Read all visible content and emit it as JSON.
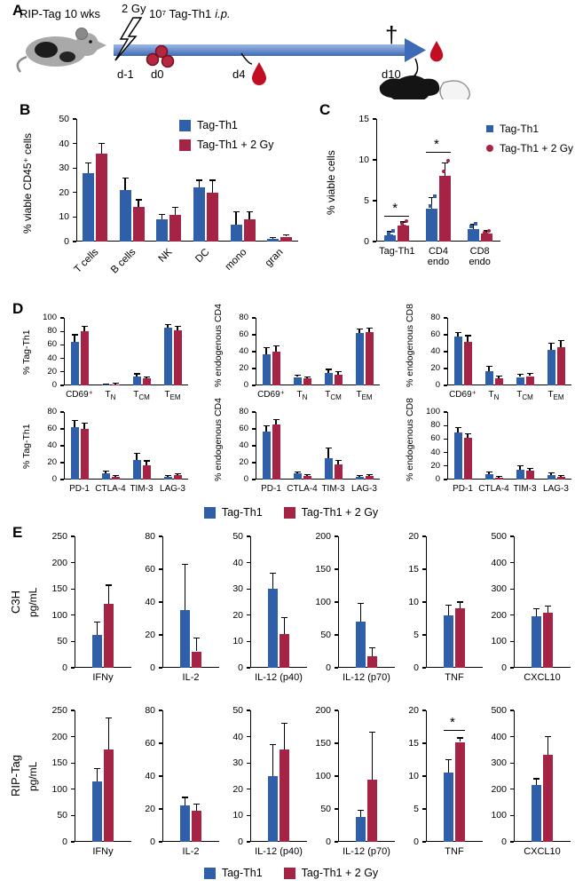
{
  "colors": {
    "blue": "#2e5fa8",
    "red": "#a52345",
    "arrow": "#3f6ab5"
  },
  "legend": {
    "series1": "Tag-Th1",
    "series2": "Tag-Th1 + 2 Gy"
  },
  "panels": {
    "A": {
      "label": "A",
      "mouse_label": "RIP-Tag 10 wks",
      "irradiation": "2 Gy",
      "cells_dose": "10⁷ Tag-Th1",
      "cells_route": "i.p.",
      "timepoints": [
        "d-1",
        "d0",
        "d4",
        "d10"
      ],
      "endpoint_symbol": "†"
    },
    "B": {
      "label": "B"
    },
    "C": {
      "label": "C"
    },
    "D": {
      "label": "D"
    },
    "E": {
      "label": "E",
      "rows": [
        {
          "label": "C3H",
          "ylabel": "pg/mL"
        },
        {
          "label": "RIP-Tag",
          "ylabel": "pg/mL"
        }
      ]
    }
  },
  "chart_data": [
    {
      "id": "B",
      "type": "bar",
      "ylabel": "% viable CD45⁺ cells",
      "ylim": [
        0,
        50
      ],
      "yticks": [
        0,
        10,
        20,
        30,
        40,
        50
      ],
      "categories": [
        "T cells",
        "B cells",
        "NK",
        "DC",
        "mono",
        "gran"
      ],
      "series": [
        {
          "name": "Tag-Th1",
          "color": "blue",
          "values": [
            28,
            21,
            9,
            22,
            7,
            1
          ],
          "errors": [
            4,
            5,
            2,
            3,
            5,
            0.5
          ]
        },
        {
          "name": "Tag-Th1 + 2 Gy",
          "color": "red",
          "values": [
            36,
            14,
            11,
            20,
            9,
            2
          ],
          "errors": [
            4,
            3,
            3,
            5,
            3,
            0.7
          ]
        }
      ]
    },
    {
      "id": "C",
      "type": "bar",
      "ylabel": "% viable cells",
      "ylim": [
        0,
        15
      ],
      "yticks": [
        0,
        5,
        10,
        15
      ],
      "categories": [
        "Tag-Th1",
        "CD4\nendo",
        "CD8\nendo"
      ],
      "series": [
        {
          "name": "Tag-Th1",
          "color": "blue",
          "marker": "square",
          "values": [
            0.8,
            4,
            1.5
          ],
          "errors": [
            0.4,
            1.4,
            0.6
          ],
          "points": [
            [
              0.4,
              0.7,
              1.0,
              1.3
            ],
            [
              2.8,
              3.6,
              4.3,
              5.6
            ],
            [
              0.9,
              1.3,
              1.8,
              2.2
            ]
          ]
        },
        {
          "name": "Tag-Th1 + 2 Gy",
          "color": "red",
          "marker": "circle",
          "values": [
            2,
            8,
            1
          ],
          "errors": [
            0.4,
            1.6,
            0.3
          ],
          "points": [
            [
              1.6,
              1.9,
              2.2,
              2.5
            ],
            [
              6.3,
              7.6,
              8.6,
              9.9
            ],
            [
              0.7,
              0.9,
              1.1,
              1.3
            ]
          ]
        }
      ],
      "sig": [
        {
          "cat": 0,
          "y": 3.2,
          "label": "*"
        },
        {
          "cat": 1,
          "y": 11,
          "label": "*"
        }
      ]
    },
    {
      "id": "D-TagTh1-memory",
      "type": "bar",
      "ylabel": "% Tag-Th1",
      "ylim": [
        0,
        100
      ],
      "yticks": [
        0,
        20,
        40,
        60,
        80,
        100
      ],
      "categories": [
        "CD69⁺",
        "T_N",
        "T_CM",
        "T_EM"
      ],
      "series": [
        {
          "color": "blue",
          "values": [
            65,
            1,
            13,
            85
          ],
          "errors": [
            10,
            0.8,
            4,
            5
          ]
        },
        {
          "color": "red",
          "values": [
            80,
            2,
            10,
            82
          ],
          "errors": [
            8,
            1,
            3,
            6
          ]
        }
      ]
    },
    {
      "id": "D-CD4-memory",
      "type": "bar",
      "ylabel": "% endogenous CD4",
      "ylim": [
        0,
        80
      ],
      "yticks": [
        0,
        20,
        40,
        60,
        80
      ],
      "categories": [
        "CD69⁺",
        "T_N",
        "T_CM",
        "T_EM"
      ],
      "series": [
        {
          "color": "blue",
          "values": [
            37,
            10,
            15,
            62
          ],
          "errors": [
            8,
            2,
            4,
            5
          ]
        },
        {
          "color": "red",
          "values": [
            40,
            8,
            13,
            63
          ],
          "errors": [
            7,
            2,
            3,
            5
          ]
        }
      ]
    },
    {
      "id": "D-CD8-memory",
      "type": "bar",
      "ylabel": "% endogenous CD8",
      "ylim": [
        0,
        80
      ],
      "yticks": [
        0,
        20,
        40,
        60,
        80
      ],
      "categories": [
        "CD69⁺",
        "T_N",
        "T_CM",
        "T_EM"
      ],
      "series": [
        {
          "color": "blue",
          "values": [
            58,
            17,
            10,
            42
          ],
          "errors": [
            5,
            6,
            3,
            8
          ]
        },
        {
          "color": "red",
          "values": [
            52,
            8,
            11,
            45
          ],
          "errors": [
            7,
            3,
            3,
            8
          ]
        }
      ]
    },
    {
      "id": "D-TagTh1-inhibitory",
      "type": "bar",
      "ylabel": "% Tag-Th1",
      "ylim": [
        0,
        80
      ],
      "yticks": [
        0,
        20,
        40,
        60,
        80
      ],
      "categories": [
        "PD-1",
        "CTLA-4",
        "TIM-3",
        "LAG-3"
      ],
      "series": [
        {
          "color": "blue",
          "values": [
            62,
            7,
            23,
            3
          ],
          "errors": [
            8,
            3,
            8,
            1.5
          ]
        },
        {
          "color": "red",
          "values": [
            60,
            3,
            17,
            5
          ],
          "errors": [
            7,
            1.5,
            5,
            2
          ]
        }
      ]
    },
    {
      "id": "D-CD4-inhibitory",
      "type": "bar",
      "ylabel": "% endogenous CD4",
      "ylim": [
        0,
        80
      ],
      "yticks": [
        0,
        20,
        40,
        60,
        80
      ],
      "categories": [
        "PD-1",
        "CTLA-4",
        "TIM-3",
        "LAG-3"
      ],
      "series": [
        {
          "color": "blue",
          "values": [
            57,
            7,
            25,
            3
          ],
          "errors": [
            7,
            2,
            12,
            2
          ]
        },
        {
          "color": "red",
          "values": [
            65,
            4,
            18,
            4
          ],
          "errors": [
            6,
            2,
            5,
            2
          ]
        }
      ]
    },
    {
      "id": "D-CD8-inhibitory",
      "type": "bar",
      "ylabel": "% endogenous CD8",
      "ylim": [
        0,
        100
      ],
      "yticks": [
        0,
        20,
        40,
        60,
        80,
        100
      ],
      "categories": [
        "PD-1",
        "CTLA-4",
        "TIM-3",
        "LAG-3"
      ],
      "series": [
        {
          "color": "blue",
          "values": [
            70,
            8,
            15,
            7
          ],
          "errors": [
            7,
            3,
            5,
            3
          ]
        },
        {
          "color": "red",
          "values": [
            62,
            3,
            13,
            4
          ],
          "errors": [
            6,
            1.5,
            3,
            2
          ]
        }
      ]
    },
    {
      "id": "E-C3H-IFNy",
      "type": "bar",
      "ylim": [
        0,
        250
      ],
      "yticks": [
        0,
        50,
        100,
        150,
        200,
        250
      ],
      "categories": [
        "IFNy"
      ],
      "series": [
        {
          "color": "blue",
          "values": [
            62
          ],
          "errors": [
            25
          ]
        },
        {
          "color": "red",
          "values": [
            122
          ],
          "errors": [
            35
          ]
        }
      ]
    },
    {
      "id": "E-C3H-IL2",
      "type": "bar",
      "ylim": [
        0,
        80
      ],
      "yticks": [
        0,
        20,
        40,
        60,
        80
      ],
      "categories": [
        "IL-2"
      ],
      "series": [
        {
          "color": "blue",
          "values": [
            35
          ],
          "errors": [
            28
          ]
        },
        {
          "color": "red",
          "values": [
            10
          ],
          "errors": [
            8
          ]
        }
      ]
    },
    {
      "id": "E-C3H-IL12p40",
      "type": "bar",
      "ylim": [
        0,
        50
      ],
      "yticks": [
        0,
        10,
        20,
        30,
        40,
        50
      ],
      "categories": [
        "IL-12 (p40)"
      ],
      "series": [
        {
          "color": "blue",
          "values": [
            30
          ],
          "errors": [
            6
          ]
        },
        {
          "color": "red",
          "values": [
            13
          ],
          "errors": [
            6
          ]
        }
      ]
    },
    {
      "id": "E-C3H-IL12p70",
      "type": "bar",
      "ylim": [
        0,
        200
      ],
      "yticks": [
        0,
        50,
        100,
        150,
        200
      ],
      "categories": [
        "IL-12 (p70)"
      ],
      "series": [
        {
          "color": "blue",
          "values": [
            70
          ],
          "errors": [
            28
          ]
        },
        {
          "color": "red",
          "values": [
            18
          ],
          "errors": [
            12
          ]
        }
      ]
    },
    {
      "id": "E-C3H-TNF",
      "type": "bar",
      "ylim": [
        0,
        20
      ],
      "yticks": [
        0,
        5,
        10,
        15,
        20
      ],
      "categories": [
        "TNF"
      ],
      "series": [
        {
          "color": "blue",
          "values": [
            8
          ],
          "errors": [
            1.5
          ]
        },
        {
          "color": "red",
          "values": [
            9
          ],
          "errors": [
            1
          ]
        }
      ]
    },
    {
      "id": "E-C3H-CXCL10",
      "type": "bar",
      "ylim": [
        0,
        500
      ],
      "yticks": [
        0,
        100,
        200,
        300,
        400,
        500
      ],
      "categories": [
        "CXCL10"
      ],
      "series": [
        {
          "color": "blue",
          "values": [
            195
          ],
          "errors": [
            30
          ]
        },
        {
          "color": "red",
          "values": [
            210
          ],
          "errors": [
            25
          ]
        }
      ]
    },
    {
      "id": "E-RIPTag-IFNy",
      "type": "bar",
      "ylim": [
        0,
        250
      ],
      "yticks": [
        0,
        50,
        100,
        150,
        200,
        250
      ],
      "categories": [
        "IFNy"
      ],
      "series": [
        {
          "color": "blue",
          "values": [
            115
          ],
          "errors": [
            25
          ]
        },
        {
          "color": "red",
          "values": [
            175
          ],
          "errors": [
            60
          ]
        }
      ]
    },
    {
      "id": "E-RIPTag-IL2",
      "type": "bar",
      "ylim": [
        0,
        80
      ],
      "yticks": [
        0,
        20,
        40,
        60,
        80
      ],
      "categories": [
        "IL-2"
      ],
      "series": [
        {
          "color": "blue",
          "values": [
            22
          ],
          "errors": [
            5
          ]
        },
        {
          "color": "red",
          "values": [
            19
          ],
          "errors": [
            4
          ]
        }
      ]
    },
    {
      "id": "E-RIPTag-IL12p40",
      "type": "bar",
      "ylim": [
        0,
        50
      ],
      "yticks": [
        0,
        10,
        20,
        30,
        40,
        50
      ],
      "categories": [
        "IL-12 (p40)"
      ],
      "series": [
        {
          "color": "blue",
          "values": [
            25
          ],
          "errors": [
            12
          ]
        },
        {
          "color": "red",
          "values": [
            35
          ],
          "errors": [
            10
          ]
        }
      ]
    },
    {
      "id": "E-RIPTag-IL12p70",
      "type": "bar",
      "ylim": [
        0,
        200
      ],
      "yticks": [
        0,
        50,
        100,
        150,
        200
      ],
      "categories": [
        "IL-12 (p70)"
      ],
      "series": [
        {
          "color": "blue",
          "values": [
            38
          ],
          "errors": [
            10
          ]
        },
        {
          "color": "red",
          "values": [
            95
          ],
          "errors": [
            72
          ]
        }
      ]
    },
    {
      "id": "E-RIPTag-TNF",
      "type": "bar",
      "ylim": [
        0,
        20
      ],
      "yticks": [
        0,
        5,
        10,
        15,
        20
      ],
      "categories": [
        "TNF"
      ],
      "series": [
        {
          "color": "blue",
          "values": [
            10.5
          ],
          "errors": [
            2
          ]
        },
        {
          "color": "red",
          "values": [
            15.2
          ],
          "errors": [
            0.6
          ]
        }
      ],
      "sig": [
        {
          "cat": 0,
          "y": 17,
          "label": "*"
        }
      ]
    },
    {
      "id": "E-RIPTag-CXCL10",
      "type": "bar",
      "ylim": [
        0,
        500
      ],
      "yticks": [
        0,
        100,
        200,
        300,
        400,
        500
      ],
      "categories": [
        "CXCL10"
      ],
      "series": [
        {
          "color": "blue",
          "values": [
            215
          ],
          "errors": [
            25
          ]
        },
        {
          "color": "red",
          "values": [
            330
          ],
          "errors": [
            70
          ]
        }
      ]
    }
  ]
}
